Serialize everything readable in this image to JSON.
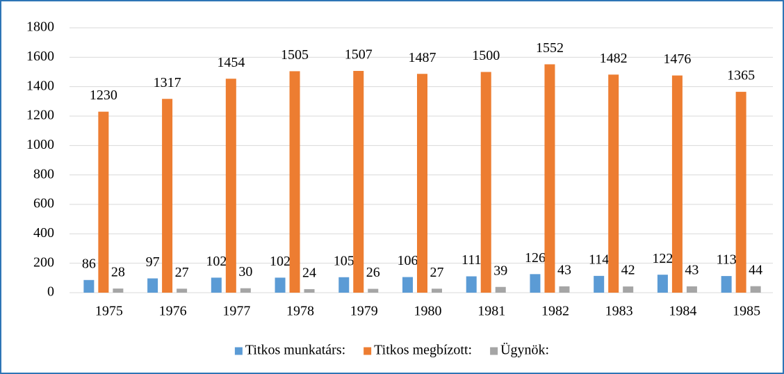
{
  "chart_data": {
    "type": "bar",
    "categories": [
      "1975",
      "1976",
      "1977",
      "1978",
      "1979",
      "1980",
      "1981",
      "1982",
      "1983",
      "1984",
      "1985"
    ],
    "series": [
      {
        "name": "Titkos munkatárs:",
        "color": "#5b9bd5",
        "values": [
          86,
          97,
          102,
          102,
          105,
          106,
          111,
          126,
          114,
          122,
          113
        ]
      },
      {
        "name": "Titkos megbízott:",
        "color": "#ed7d31",
        "values": [
          1230,
          1317,
          1454,
          1505,
          1507,
          1487,
          1500,
          1552,
          1482,
          1476,
          1365
        ]
      },
      {
        "name": "Ügynök:",
        "color": "#a5a5a5",
        "values": [
          28,
          27,
          30,
          24,
          26,
          27,
          39,
          43,
          42,
          43,
          44
        ]
      }
    ],
    "ylim": [
      0,
      1800
    ],
    "yticks": [
      0,
      200,
      400,
      600,
      800,
      1000,
      1200,
      1400,
      1600,
      1800
    ],
    "grid": true,
    "legend": "bottom"
  }
}
